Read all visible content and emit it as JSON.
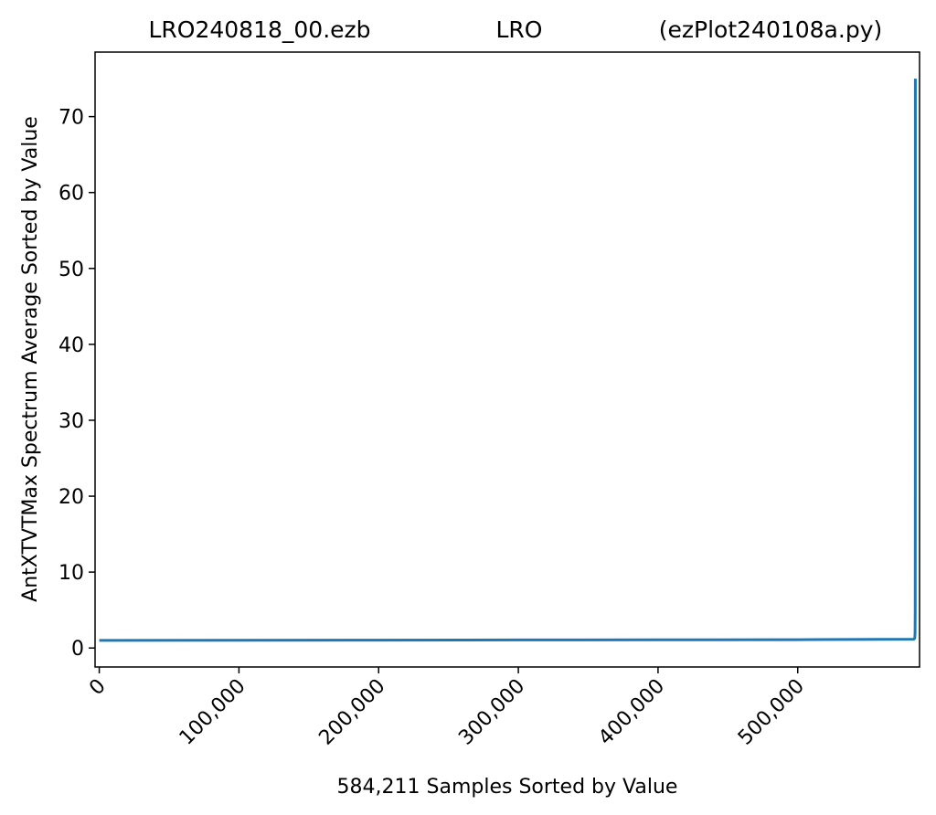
{
  "chart_data": {
    "type": "line",
    "title_parts": [
      "LRO240818_00.ezb",
      "LRO",
      "(ezPlot240108a.py)"
    ],
    "xlabel": "584,211 Samples Sorted by Value",
    "ylabel": "AntXTVTMax Spectrum Average Sorted by Value",
    "xlim": [
      -3000,
      587200
    ],
    "ylim": [
      -2.5,
      78.5
    ],
    "x_ticks": [
      0,
      100000,
      200000,
      300000,
      400000,
      500000
    ],
    "x_tick_labels": [
      "0",
      "100,000",
      "200,000",
      "300,000",
      "400,000",
      "500,000"
    ],
    "y_ticks": [
      0,
      10,
      20,
      30,
      40,
      50,
      60,
      70
    ],
    "y_tick_labels": [
      "0",
      "10",
      "20",
      "30",
      "40",
      "50",
      "60",
      "70"
    ],
    "grid": false,
    "line_color": "#1f77b4",
    "series": [
      {
        "x": [
          0,
          100000,
          200000,
          300000,
          400000,
          500000,
          583000,
          583800,
          584000,
          584100,
          584150,
          584200,
          584211
        ],
        "y": [
          1.0,
          1.02,
          1.04,
          1.06,
          1.08,
          1.1,
          1.15,
          1.3,
          2.0,
          5.0,
          15.0,
          40.0,
          75.0
        ]
      }
    ]
  }
}
